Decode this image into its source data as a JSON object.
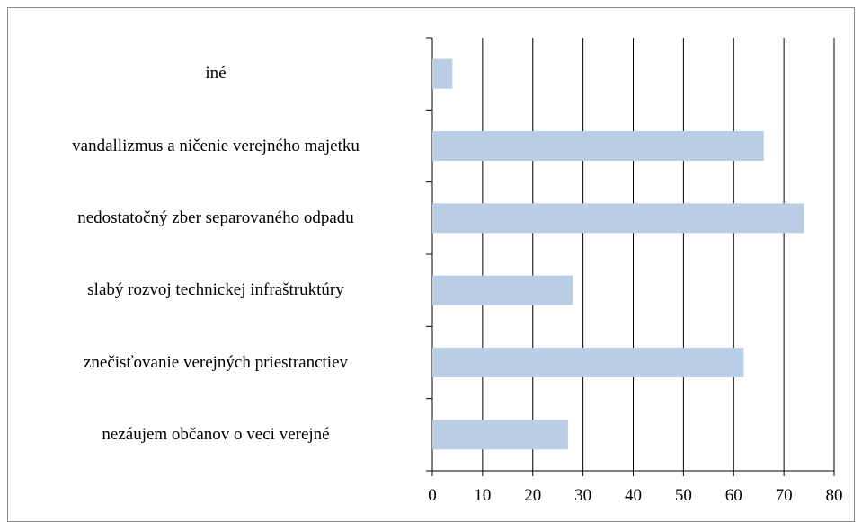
{
  "chart_data": {
    "type": "bar",
    "orientation": "horizontal",
    "categories": [
      "nezáujem občanov o veci verejné",
      "znečisťovanie verejných priestranctiev",
      "slabý rozvoj technickej infraštruktúry",
      "nedostatočný zber separovaného odpadu",
      "vandallizmus a ničenie verejného majetku",
      "iné"
    ],
    "values": [
      27,
      62,
      28,
      74,
      66,
      4
    ],
    "color": "#b9cde5",
    "xlim": [
      0,
      80
    ],
    "xticks": [
      0,
      10,
      20,
      30,
      40,
      50,
      60,
      70,
      80
    ],
    "grid": true
  }
}
